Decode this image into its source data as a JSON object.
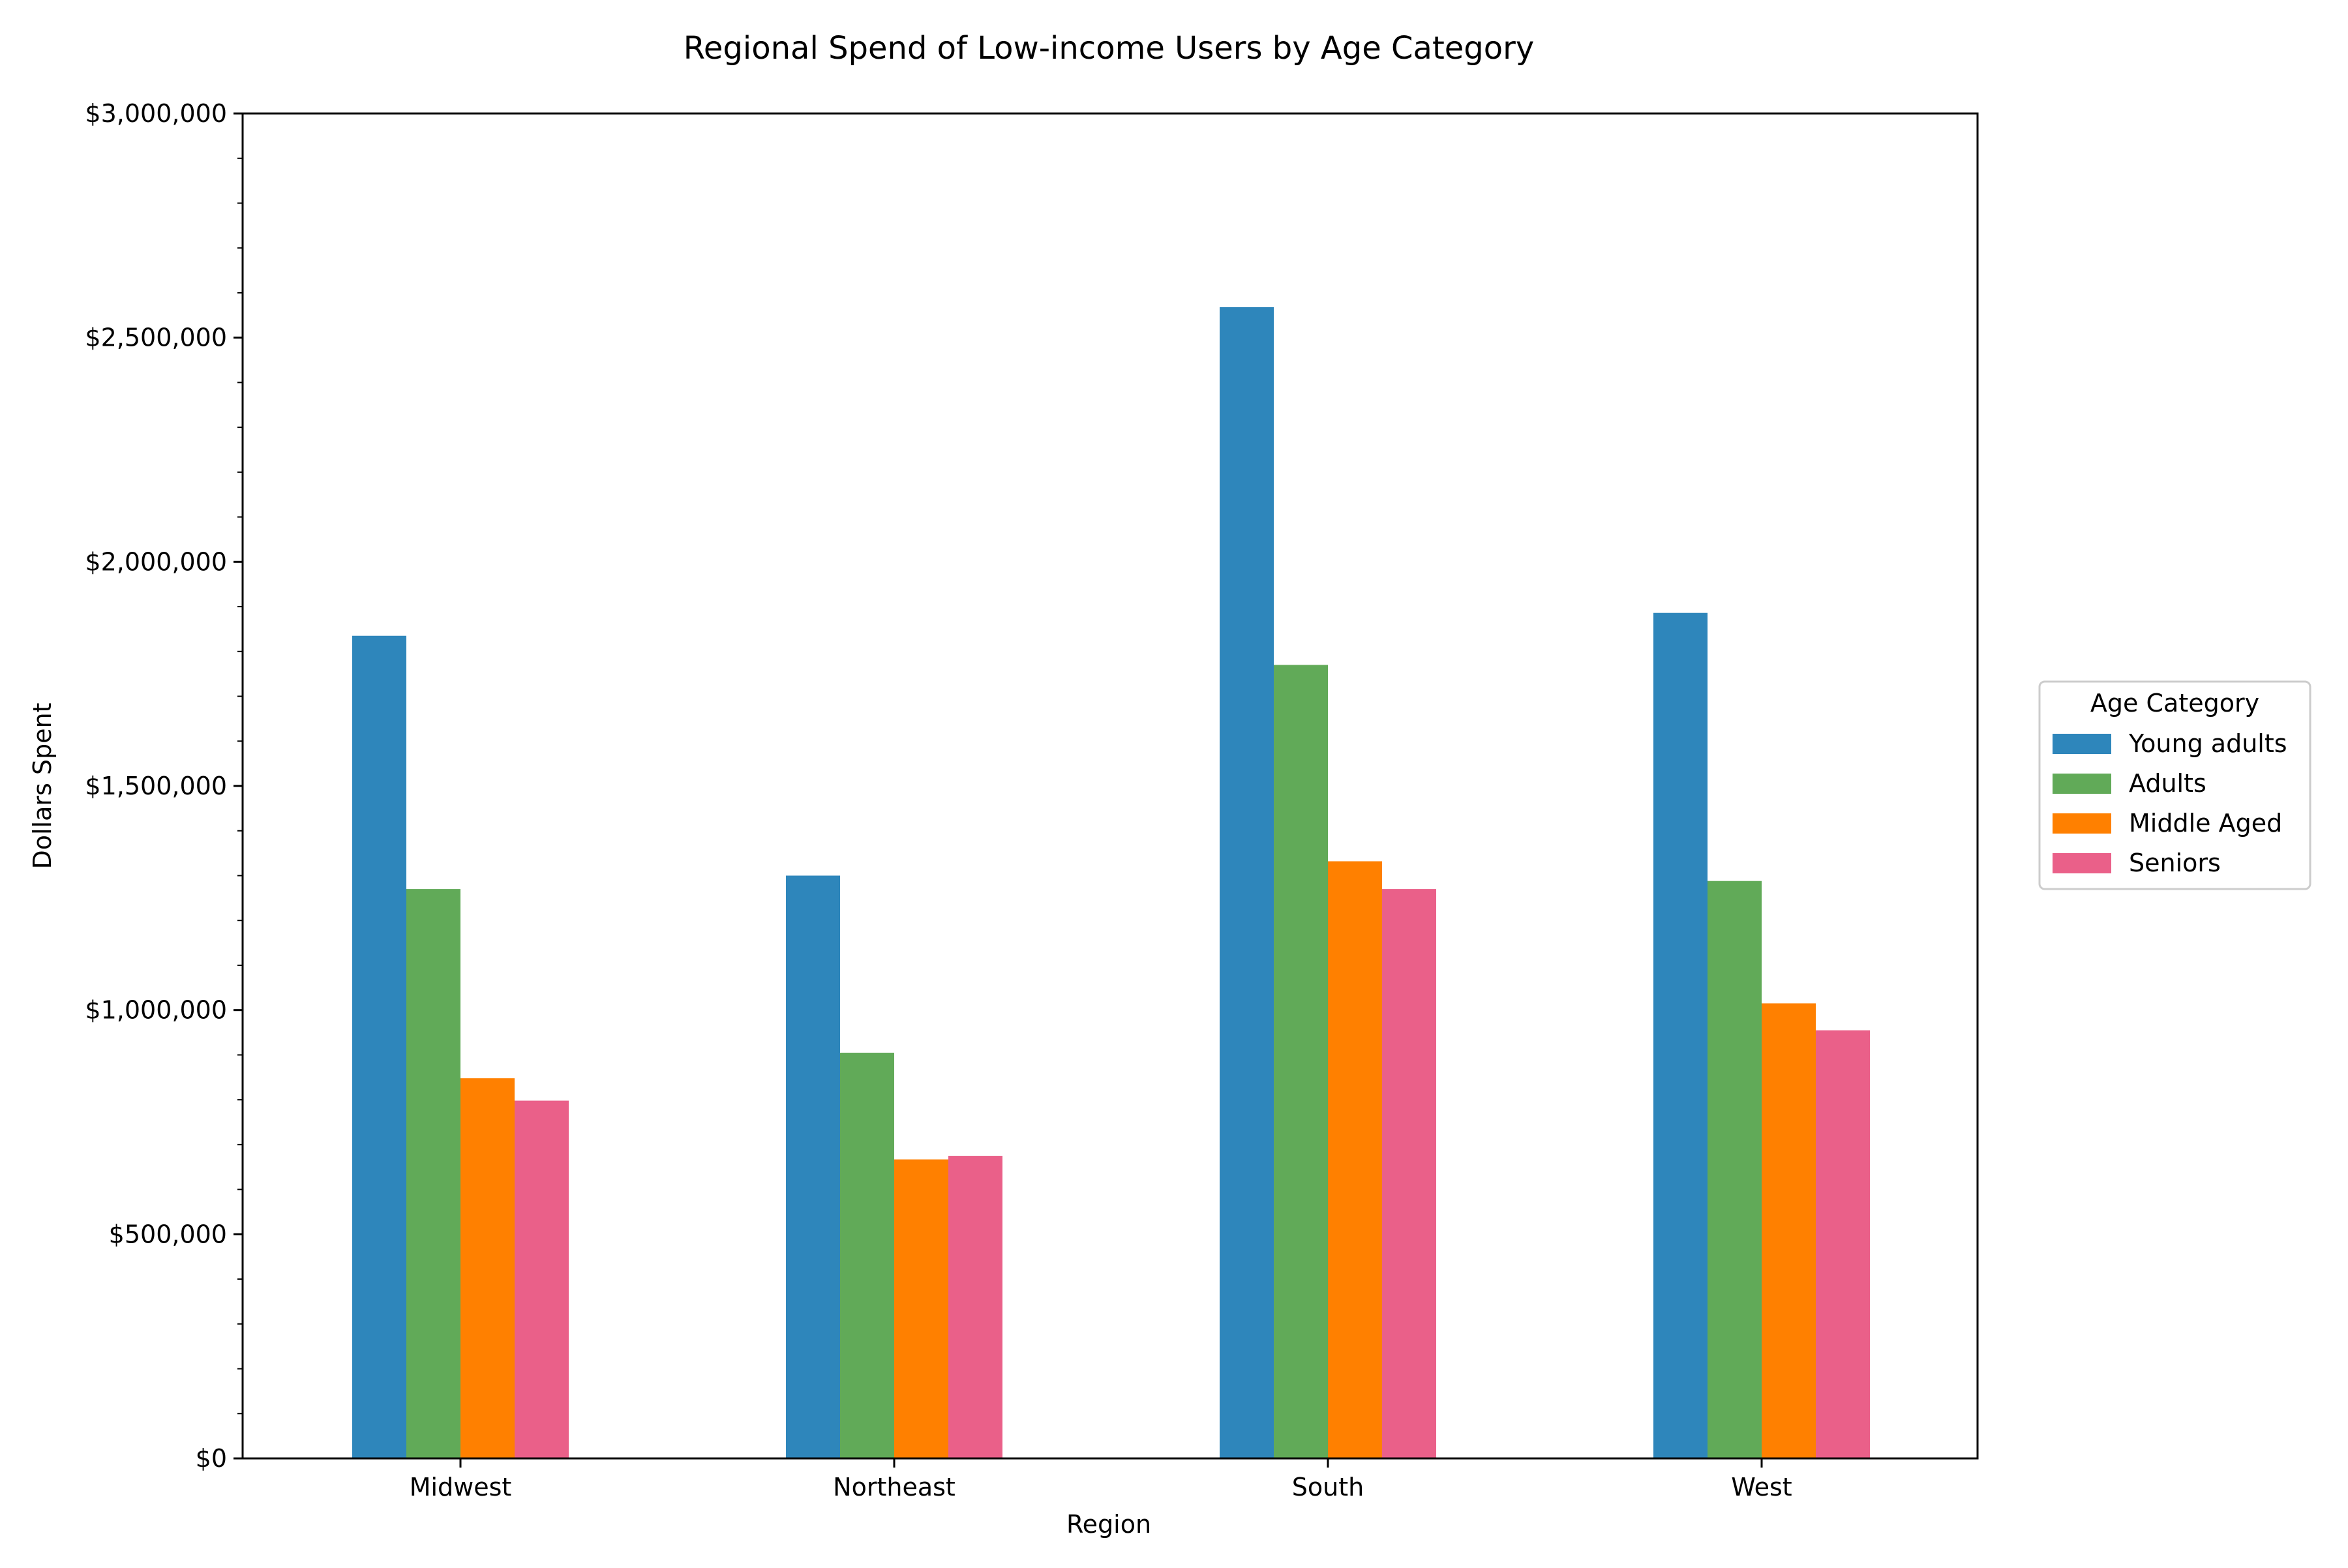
{
  "chart_data": {
    "type": "bar",
    "title": "Regional Spend of Low-income Users by Age Category",
    "xlabel": "Region",
    "ylabel": "Dollars Spent",
    "categories": [
      "Midwest",
      "Northeast",
      "South",
      "West"
    ],
    "ylim": [
      0,
      3000000
    ],
    "yticks": [
      {
        "value": 0,
        "label": "$0"
      },
      {
        "value": 500000,
        "label": "$500,000"
      },
      {
        "value": 1000000,
        "label": "$1,000,000"
      },
      {
        "value": 1500000,
        "label": "$1,500,000"
      },
      {
        "value": 2000000,
        "label": "$2,000,000"
      },
      {
        "value": 2500000,
        "label": "$2,500,000"
      },
      {
        "value": 3000000,
        "label": "$3,000,000"
      }
    ],
    "minor_tick_step": 100000,
    "grid": false,
    "legend": {
      "title": "Age Category",
      "placement": "center-right, outside plot"
    },
    "series": [
      {
        "name": "Young adults",
        "color": "#2e86bb",
        "values": [
          1835000,
          1300000,
          2568000,
          1886000
        ]
      },
      {
        "name": "Adults",
        "color": "#61aa58",
        "values": [
          1270000,
          905000,
          1770000,
          1288000
        ]
      },
      {
        "name": "Middle Aged",
        "color": "#ff8000",
        "values": [
          848000,
          667000,
          1332000,
          1015000
        ]
      },
      {
        "name": "Seniors",
        "color": "#ea6089",
        "values": [
          798000,
          675000,
          1270000,
          955000
        ]
      }
    ]
  }
}
